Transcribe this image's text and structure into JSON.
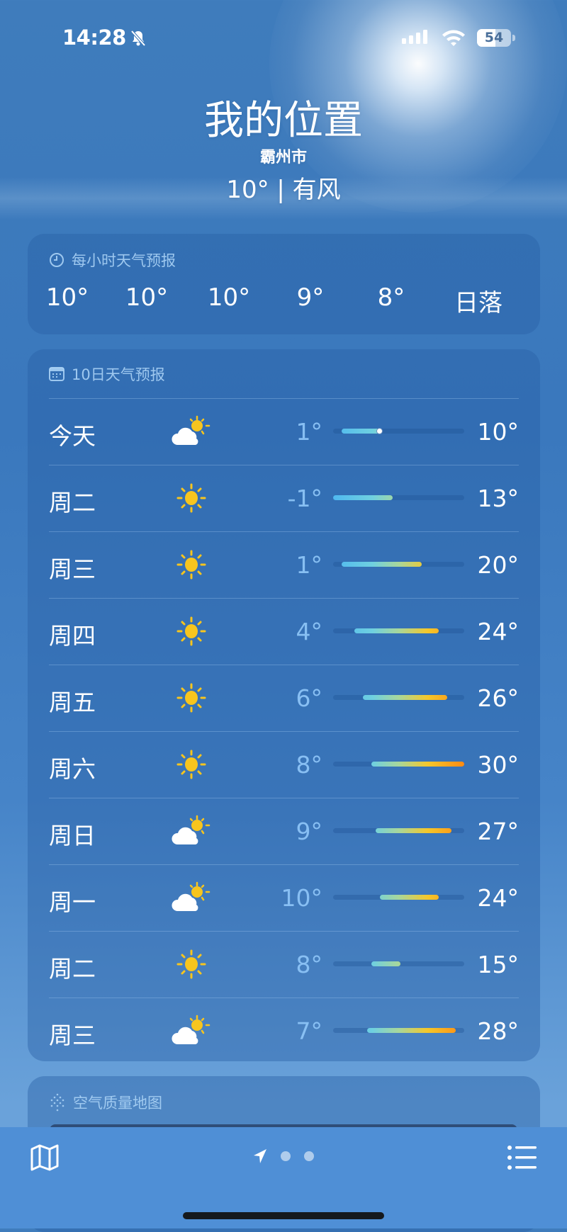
{
  "status_bar": {
    "time": "14:28",
    "battery": "54",
    "battery_level": 54,
    "silent_icon": "bell-slash-icon",
    "signal_icon": "cellular-signal-icon",
    "wifi_icon": "wifi-icon"
  },
  "header": {
    "title": "我的位置",
    "city": "霸州市",
    "condition": "10° | 有风"
  },
  "hourly": {
    "title": "每小时天气预报",
    "icon": "clock-icon",
    "items": [
      "10°",
      "10°",
      "10°",
      "9°",
      "8°",
      "日落"
    ]
  },
  "daily": {
    "title": "10日天气预报",
    "icon": "calendar-icon",
    "range_min": -1,
    "range_max": 30,
    "current_temp": 10,
    "colors": {
      "cold": "#4fb8f0",
      "mild": "#a8d79b",
      "warm": "#f5c72a",
      "hot": "#ff8a12"
    },
    "days": [
      {
        "day": "今天",
        "icon": "partly-cloudy-icon",
        "low": 1,
        "high": 10,
        "low_label": "1°",
        "high_label": "10°"
      },
      {
        "day": "周二",
        "icon": "sun-icon",
        "low": -1,
        "high": 13,
        "low_label": "-1°",
        "high_label": "13°"
      },
      {
        "day": "周三",
        "icon": "sun-icon",
        "low": 1,
        "high": 20,
        "low_label": "1°",
        "high_label": "20°"
      },
      {
        "day": "周四",
        "icon": "sun-icon",
        "low": 4,
        "high": 24,
        "low_label": "4°",
        "high_label": "24°"
      },
      {
        "day": "周五",
        "icon": "sun-icon",
        "low": 6,
        "high": 26,
        "low_label": "6°",
        "high_label": "26°"
      },
      {
        "day": "周六",
        "icon": "sun-icon",
        "low": 8,
        "high": 30,
        "low_label": "8°",
        "high_label": "30°"
      },
      {
        "day": "周日",
        "icon": "partly-cloudy-icon",
        "low": 9,
        "high": 27,
        "low_label": "9°",
        "high_label": "27°"
      },
      {
        "day": "周一",
        "icon": "partly-cloudy-icon",
        "low": 10,
        "high": 24,
        "low_label": "10°",
        "high_label": "24°"
      },
      {
        "day": "周二",
        "icon": "sun-icon",
        "low": 8,
        "high": 15,
        "low_label": "8°",
        "high_label": "15°"
      },
      {
        "day": "周三",
        "icon": "partly-cloudy-icon",
        "low": 7,
        "high": 28,
        "low_label": "7°",
        "high_label": "28°"
      }
    ]
  },
  "air_quality": {
    "title": "空气质量地图",
    "icon": "air-quality-dots-icon"
  },
  "tabbar": {
    "map_icon": "map-icon",
    "location_icon": "location-arrow-icon",
    "list_icon": "list-icon",
    "pages": 3,
    "current_page": 1
  }
}
